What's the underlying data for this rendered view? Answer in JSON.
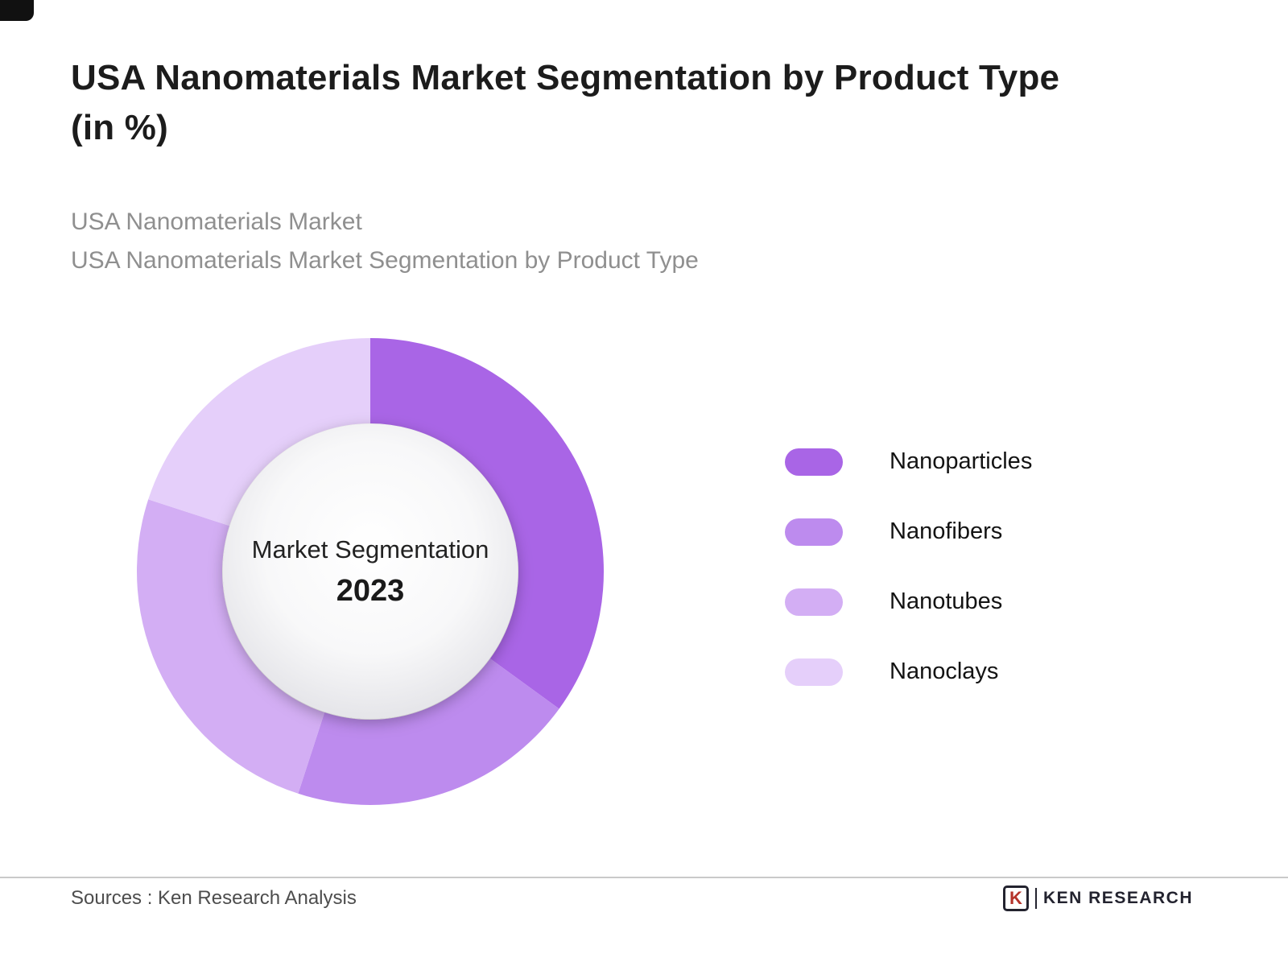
{
  "header": {
    "title_line1": "USA Nanomaterials Market Segmentation by Product Type",
    "title_line2": "(in %)",
    "subtitle_line1": "USA Nanomaterials Market",
    "subtitle_line2": "USA Nanomaterials Market Segmentation by Product Type"
  },
  "chart_data": {
    "type": "pie",
    "donut": true,
    "title": "USA Nanomaterials Market Segmentation by Product Type (in %)",
    "center_label": "Market Segmentation",
    "center_year": "2023",
    "start_angle_deg": 0,
    "legend_position": "right",
    "segments": [
      {
        "label": "Nanoparticles",
        "value": 35,
        "color": "#a965e6"
      },
      {
        "label": "Nanofibers",
        "value": 20,
        "color": "#bd8bee"
      },
      {
        "label": "Nanotubes",
        "value": 25,
        "color": "#d3aef4"
      },
      {
        "label": "Nanoclays",
        "value": 20,
        "color": "#e5cffa"
      }
    ]
  },
  "footer": {
    "source": "Sources : Ken Research Analysis",
    "logo_letter": "K",
    "logo_text": "KEN RESEARCH"
  }
}
